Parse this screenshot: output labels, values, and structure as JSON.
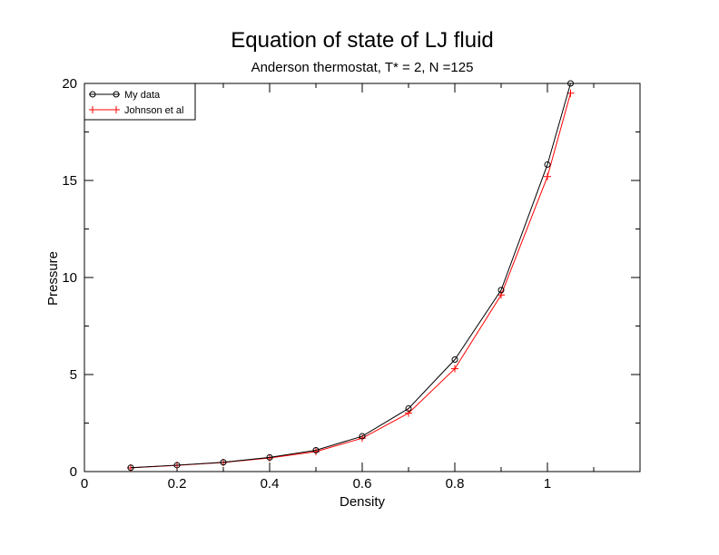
{
  "chart_data": {
    "type": "line",
    "title": "Equation of state of LJ fluid",
    "subtitle": "Anderson thermostat, T* = 2, N =125",
    "xlabel": "Density",
    "ylabel": "Pressure",
    "xlim": [
      0,
      1.2
    ],
    "ylim": [
      0,
      20
    ],
    "xticks": [
      {
        "value": 0,
        "label": "0"
      },
      {
        "value": 0.2,
        "label": "0.2"
      },
      {
        "value": 0.4,
        "label": "0.4"
      },
      {
        "value": 0.6,
        "label": "0.6"
      },
      {
        "value": 0.8,
        "label": "0.8"
      },
      {
        "value": 1.0,
        "label": "1"
      }
    ],
    "yticks": [
      {
        "value": 0,
        "label": "0"
      },
      {
        "value": 5,
        "label": "5"
      },
      {
        "value": 10,
        "label": "10"
      },
      {
        "value": 15,
        "label": "15"
      },
      {
        "value": 20,
        "label": "20"
      }
    ],
    "grid": false,
    "legend_position": "top-left",
    "series": [
      {
        "name": "My data",
        "color": "#000000",
        "marker": "circle",
        "x": [
          0.1,
          0.2,
          0.3,
          0.4,
          0.5,
          0.6,
          0.7,
          0.8,
          0.9,
          1.0,
          1.05
        ],
        "y": [
          0.2,
          0.33,
          0.48,
          0.73,
          1.1,
          1.82,
          3.25,
          5.77,
          9.35,
          15.82,
          20.0
        ]
      },
      {
        "name": "Johnson et al",
        "color": "#ff0000",
        "marker": "plus",
        "x": [
          0.1,
          0.2,
          0.3,
          0.4,
          0.5,
          0.6,
          0.7,
          0.8,
          0.9,
          1.0,
          1.05
        ],
        "y": [
          0.19,
          0.32,
          0.47,
          0.7,
          1.03,
          1.72,
          3.01,
          5.3,
          9.1,
          15.2,
          19.5
        ]
      }
    ]
  }
}
